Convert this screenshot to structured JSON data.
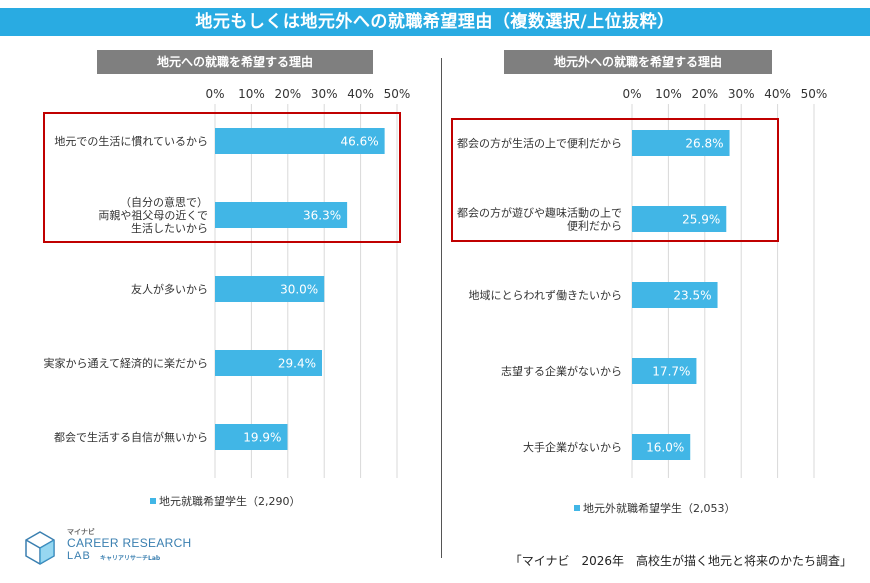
{
  "title": "地元もしくは地元外への就職希望理由（複数選択/上位抜粋）",
  "source": "「マイナビ　2026年　高校生が描く地元と将来のかたち調査」",
  "logo": {
    "small": "マイナビ",
    "line1": "CAREER RESEARCH",
    "line2": "LAB",
    "line2_sub": "キャリアリサーチLab"
  },
  "colors": {
    "bar": "#41b6e6",
    "title_bg": "#29abe2",
    "header_bg": "#7f7f7f",
    "highlight": "#c00000"
  },
  "chart_data": [
    {
      "type": "bar",
      "orientation": "horizontal",
      "title": "地元への就職を希望する理由",
      "categories": [
        [
          "地元での生活に慣れているから"
        ],
        [
          "（自分の意思で）",
          "両親や祖父母の近くで",
          "生活したいから"
        ],
        [
          "友人が多いから"
        ],
        [
          "実家から通えて経済的に楽だから"
        ],
        [
          "都会で生活する自信が無いから"
        ]
      ],
      "series": [
        {
          "name": "地元就職希望学生（2,290）",
          "values": [
            46.6,
            36.3,
            30.0,
            29.4,
            19.9
          ]
        }
      ],
      "value_labels": [
        "46.6%",
        "36.3%",
        "30.0%",
        "29.4%",
        "19.9%"
      ],
      "xlim": [
        0,
        50
      ],
      "ticks": [
        "0%",
        "10%",
        "20%",
        "30%",
        "40%",
        "50%"
      ],
      "highlighted_categories": [
        0,
        1
      ],
      "legend": "bottom"
    },
    {
      "type": "bar",
      "orientation": "horizontal",
      "title": "地元外への就職を希望する理由",
      "categories": [
        [
          "都会の方が生活の上で便利だから"
        ],
        [
          "都会の方が遊びや趣味活動の上で",
          "便利だから"
        ],
        [
          "地域にとらわれず働きたいから"
        ],
        [
          "志望する企業がないから"
        ],
        [
          "大手企業がないから"
        ]
      ],
      "series": [
        {
          "name": "地元外就職希望学生（2,053）",
          "values": [
            26.8,
            25.9,
            23.5,
            17.7,
            16.0
          ]
        }
      ],
      "value_labels": [
        "26.8%",
        "25.9%",
        "23.5%",
        "17.7%",
        "16.0%"
      ],
      "xlim": [
        0,
        50
      ],
      "ticks": [
        "0%",
        "10%",
        "20%",
        "30%",
        "40%",
        "50%"
      ],
      "highlighted_categories": [
        0,
        1
      ],
      "legend": "bottom"
    }
  ]
}
